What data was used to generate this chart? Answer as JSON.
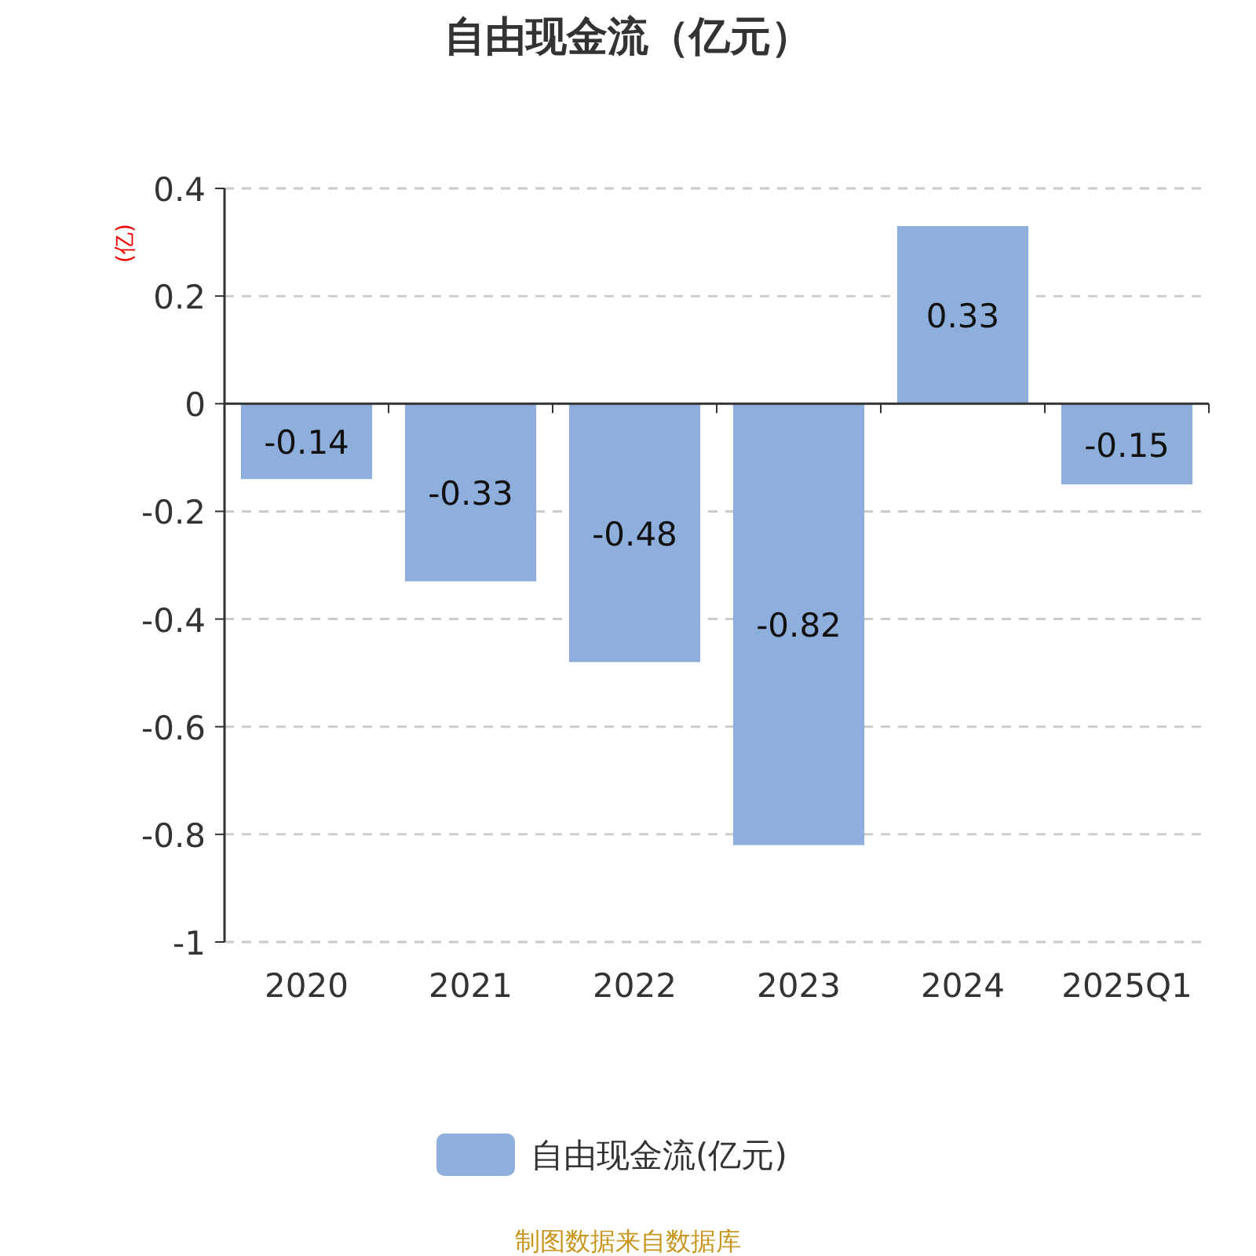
{
  "chart_data": {
    "type": "bar",
    "title": "自由现金流（亿元）",
    "ylabel": "(亿)",
    "categories": [
      "2020",
      "2021",
      "2022",
      "2023",
      "2024",
      "2025Q1"
    ],
    "series": [
      {
        "name": "自由现金流(亿元)",
        "color": "#8eaedb",
        "values": [
          -0.14,
          -0.33,
          -0.48,
          -0.82,
          0.33,
          -0.15
        ]
      }
    ],
    "ylim": [
      -1,
      0.4
    ],
    "yticks": [
      0.4,
      0.2,
      0,
      -0.2,
      -0.4,
      -0.6,
      -0.8,
      -1
    ],
    "grid": "y",
    "legend": "bottom",
    "data_labels": true,
    "annotations": [
      "制图数据来自数据库"
    ]
  }
}
